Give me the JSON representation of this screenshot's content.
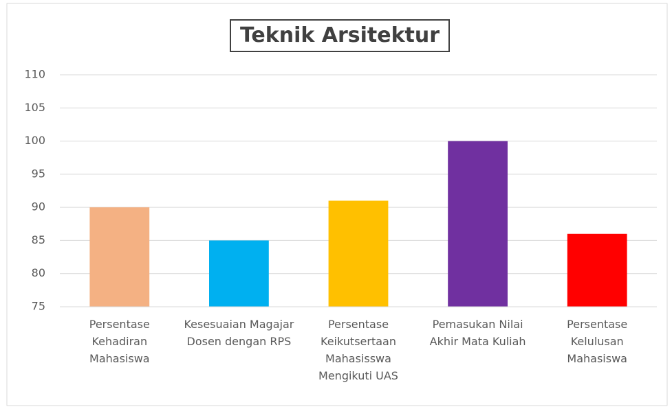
{
  "chart_data": {
    "type": "bar",
    "title": "Teknik Arsitektur",
    "categories": [
      "Persentase Kehadiran Mahasiswa",
      "Kesesuaian Magajar Dosen dengan RPS",
      "Persentase Keikutsertaan Mahasisswa Mengikuti UAS",
      "Pemasukan Nilai Akhir Mata Kuliah",
      "Persentase Kelulusan Mahasiswa"
    ],
    "values": [
      90,
      85,
      91,
      100,
      86
    ],
    "colors": [
      "#f4b183",
      "#00b0f0",
      "#ffc000",
      "#7030a0",
      "#ff0000"
    ],
    "ylim": [
      75,
      110
    ],
    "yticks": [
      75,
      80,
      85,
      90,
      95,
      100,
      105,
      110
    ],
    "grid": true
  }
}
